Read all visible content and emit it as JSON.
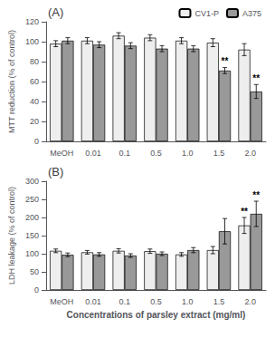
{
  "chart_data": [
    {
      "type": "bar",
      "title": "(A)",
      "categories": [
        "MeOH",
        "0.01",
        "0.1",
        "0.5",
        "1.0",
        "1.5",
        "2.0"
      ],
      "series": [
        {
          "name": "CV1-P",
          "color": "#eeeeee",
          "values": [
            98,
            101,
            106,
            104,
            101,
            99,
            92
          ],
          "errors": [
            3,
            3,
            3,
            3,
            3,
            4,
            6
          ]
        },
        {
          "name": "A375",
          "color": "#999999",
          "values": [
            101,
            97,
            96,
            93,
            93,
            71,
            50
          ],
          "errors": [
            3,
            3,
            3,
            3,
            3,
            3,
            7
          ]
        }
      ],
      "ylabel": "MTT reduction (% of control)",
      "ylim": [
        0,
        120
      ],
      "yticks": [
        0,
        20,
        40,
        60,
        80,
        100,
        120
      ],
      "grid": false,
      "legend": "upper right",
      "annotations": [
        {
          "text": "**",
          "category": "1.5",
          "series": "A375"
        },
        {
          "text": "**",
          "category": "2.0",
          "series": "A375"
        }
      ]
    },
    {
      "type": "bar",
      "title": "(B)",
      "categories": [
        "MeOH",
        "0.01",
        "0.1",
        "0.5",
        "1.0",
        "1.5",
        "2.0"
      ],
      "series": [
        {
          "name": "CV1-P",
          "color": "#eeeeee",
          "values": [
            108,
            104,
            108,
            107,
            98,
            110,
            178
          ],
          "errors": [
            5,
            5,
            6,
            6,
            5,
            10,
            22
          ]
        },
        {
          "name": "A375",
          "color": "#999999",
          "values": [
            97,
            98,
            95,
            100,
            110,
            162,
            210
          ],
          "errors": [
            5,
            5,
            5,
            5,
            7,
            35,
            35
          ]
        }
      ],
      "xlabel": "Concentrations of parsley extract (mg/ml)",
      "ylabel": "LDH leakage (% of control)",
      "ylim": [
        0,
        300
      ],
      "yticks": [
        0,
        50,
        100,
        150,
        200,
        250,
        300
      ],
      "grid": false,
      "annotations": [
        {
          "text": "**",
          "category": "2.0",
          "series": "CV1-P"
        },
        {
          "text": "**",
          "category": "2.0",
          "series": "A375"
        }
      ]
    }
  ]
}
